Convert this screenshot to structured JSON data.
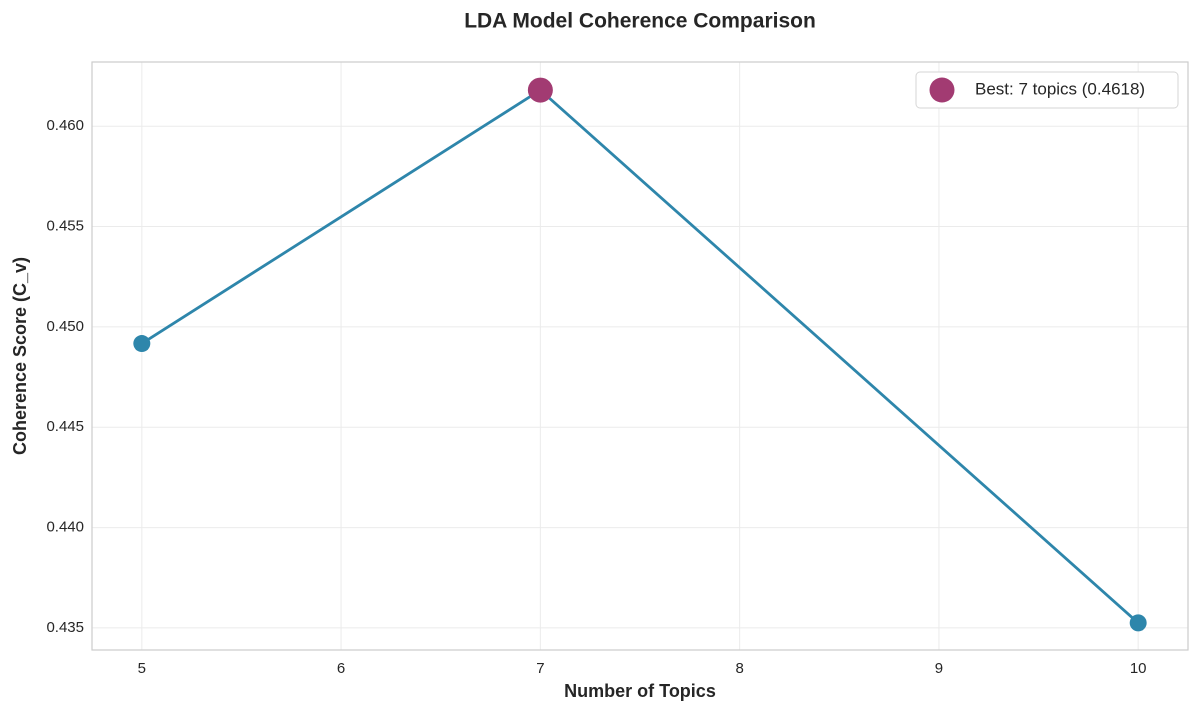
{
  "chart_data": {
    "type": "line",
    "title": "LDA Model Coherence Comparison",
    "x_label": "Number of Topics",
    "y_label": "Coherence Score (C_v)",
    "x": [
      5,
      7,
      10
    ],
    "series": [
      {
        "color": "#2e86ab",
        "values": [
          0.44917,
          0.4618,
          0.43525
        ]
      },
      {
        "name": "Best: 7 topics (0.4618)",
        "type": "scatter",
        "color": "#a23b72",
        "x": [
          7
        ],
        "values": [
          0.4618
        ]
      }
    ],
    "xlim": [
      4.75,
      10.25
    ],
    "xticks": [
      5,
      6,
      7,
      8,
      9,
      10
    ],
    "ylim": [
      0.4339,
      0.4632
    ],
    "yticks": [
      0.435,
      {
        "value": 0.44,
        "label": "0.440"
      },
      0.445,
      {
        "value": 0.45,
        "label": "0.450"
      },
      0.455,
      {
        "value": 0.46,
        "label": "0.460"
      }
    ],
    "grid": true,
    "legend": "upper right"
  }
}
